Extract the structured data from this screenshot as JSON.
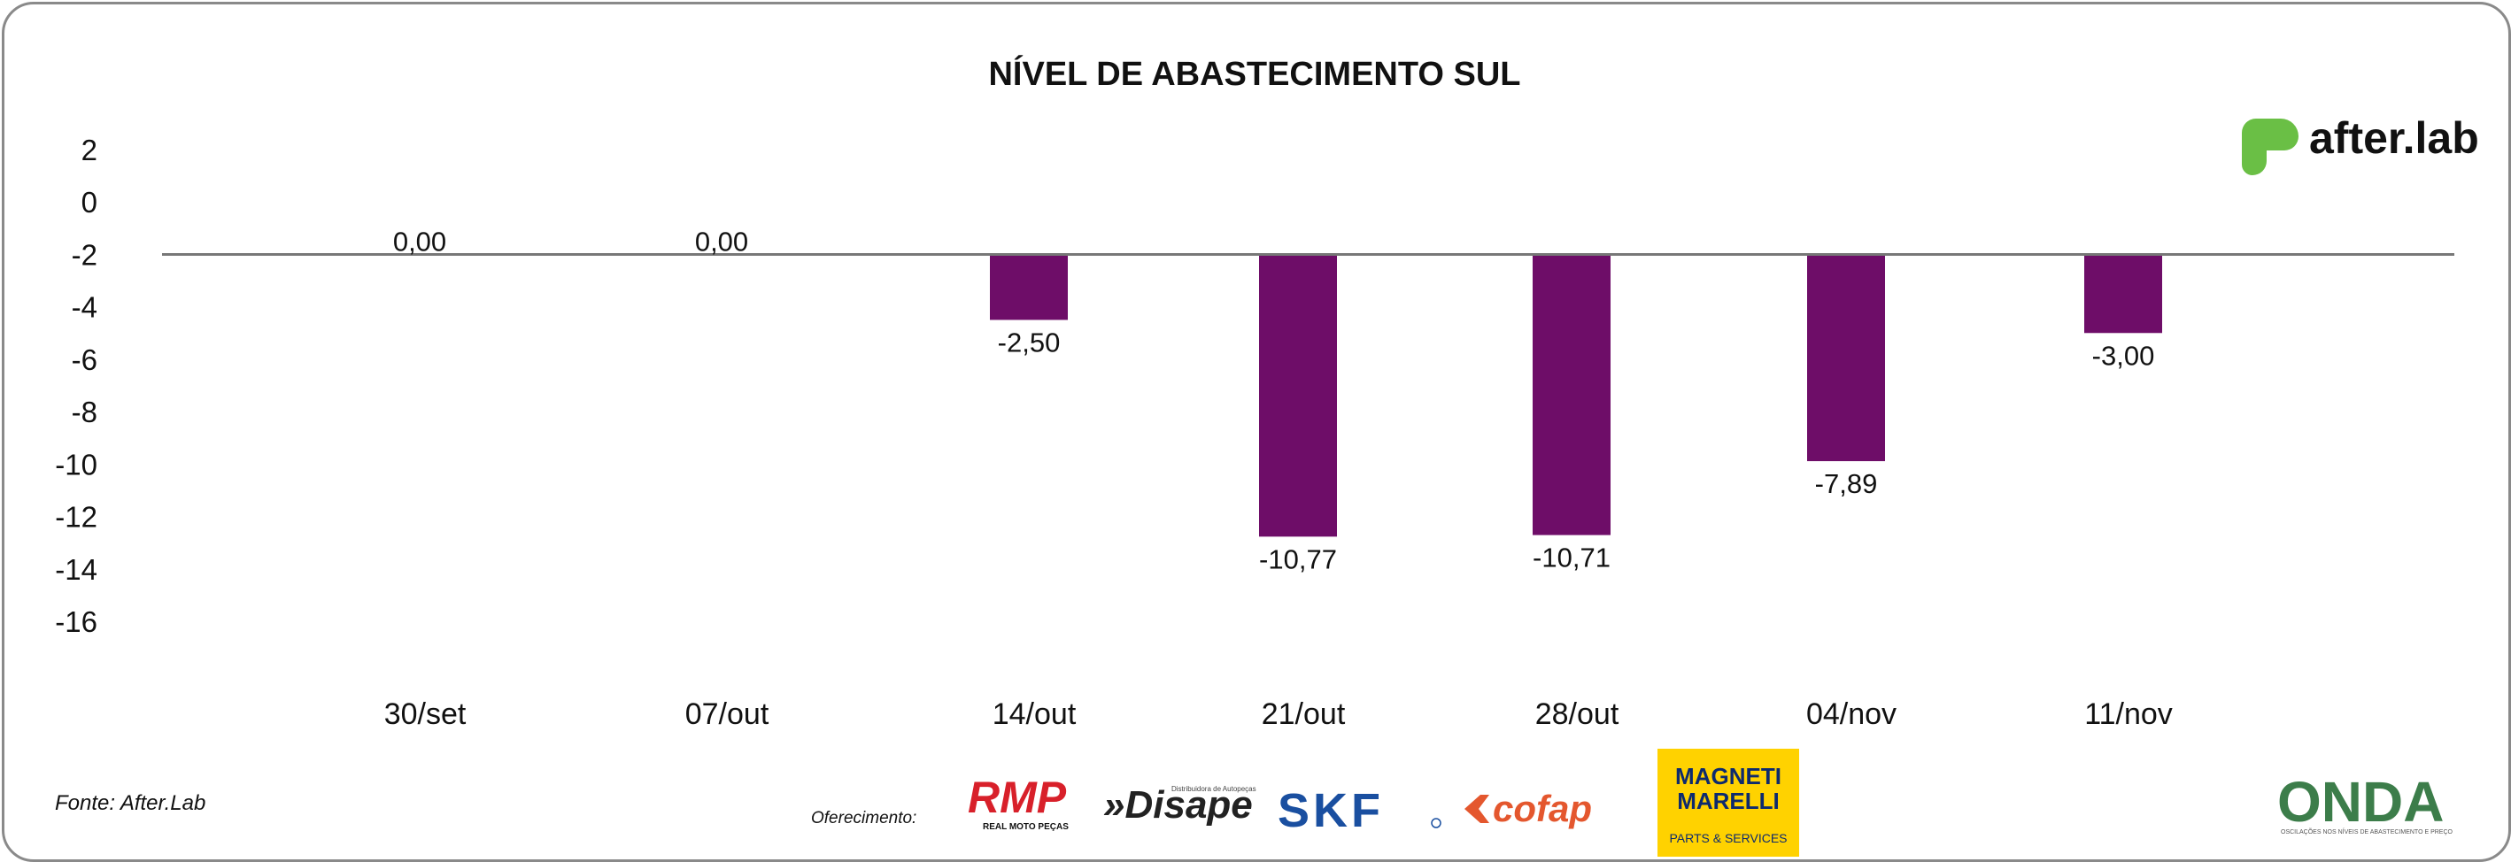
{
  "chart_data": {
    "type": "bar",
    "title": "NÍVEL DE ABASTECIMENTO SUL",
    "categories": [
      "30/set",
      "07/out",
      "14/out",
      "21/out",
      "28/out",
      "04/nov",
      "11/nov"
    ],
    "series": [
      {
        "values": [
          0.0,
          0.0,
          -2.5,
          -10.77,
          -10.71,
          -7.89,
          -3.0
        ],
        "labels": [
          "0,00",
          "0,00",
          "-2,50",
          "-10,77",
          "-10,71",
          "-7,89",
          "-3,00"
        ],
        "color": "#6e0d68"
      }
    ],
    "yticks": [
      "2",
      "0",
      "-2",
      "-4",
      "-6",
      "-8",
      "-10",
      "-12",
      "-14",
      "-16"
    ],
    "ylim": [
      -16,
      2
    ],
    "grid": false,
    "legend": "none"
  },
  "footer": {
    "source": "Fonte: After.Lab",
    "offer_label": "Oferecimento:"
  },
  "logos": {
    "afterlab": "after.lab",
    "rmp": "RMP",
    "rmp_sub": "REAL MOTO PEÇAS",
    "disape": "Disape",
    "disape_sub": "Distribuidora de Autopeças",
    "skf": "SKF",
    "cofap": "cofap",
    "magneti_top": "MAGNETI",
    "magneti_bottom": "MARELLI",
    "magneti_sub": "PARTS & SERVICES",
    "onda": "ONDA",
    "onda_sub": "OSCILAÇÕES NOS NÍVEIS DE ABASTECIMENTO E PREÇO"
  },
  "colors": {
    "bar": "#6e0d68",
    "baseline": "#777777",
    "afterlab_green": "#6abf45",
    "rmp_red": "#d8202a",
    "skf_blue": "#1a4fa0",
    "cofap_orange": "#e4572e",
    "magneti_yellow": "#ffd200",
    "onda_green": "#3c7d4a"
  }
}
